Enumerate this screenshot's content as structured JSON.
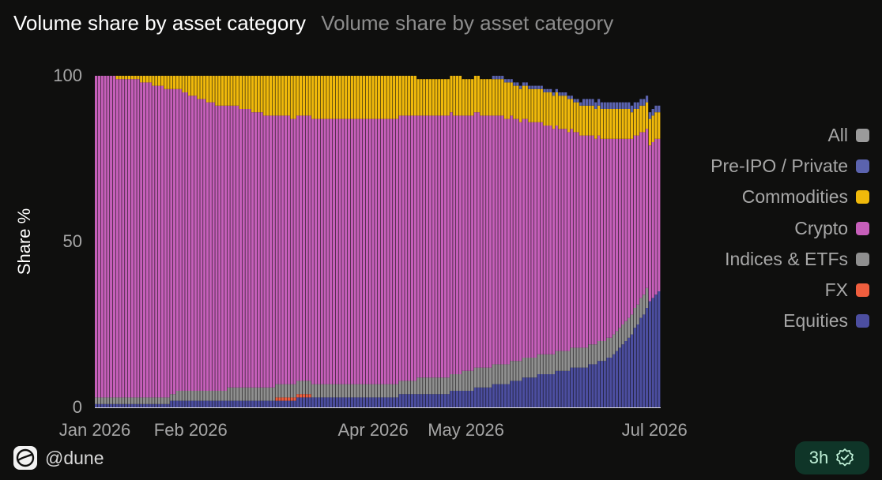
{
  "header": {
    "title": "Volume share by asset category",
    "subtitle": "Volume share by asset category"
  },
  "footer": {
    "handle": "@dune",
    "refresh": "3h"
  },
  "chart_data": {
    "type": "bar",
    "stacked": true,
    "percent_stacked": true,
    "xlabel": "",
    "ylabel": "Share %",
    "ylim": [
      0,
      100
    ],
    "y_ticks": [
      0,
      50,
      100
    ],
    "x_ticks": [
      "Jan 2026",
      "Feb 2026",
      "Apr 2026",
      "May 2026",
      "Jul 2026"
    ],
    "legend_position": "right",
    "legend": [
      {
        "name": "All",
        "color": "#9b9b9b"
      },
      {
        "name": "Pre-IPO / Private",
        "color": "#5b63ae"
      },
      {
        "name": "Commodities",
        "color": "#f0b90b"
      },
      {
        "name": "Crypto",
        "color": "#c65fba"
      },
      {
        "name": "Indices & ETFs",
        "color": "#8f8f8f"
      },
      {
        "name": "FX",
        "color": "#ef5e3e"
      },
      {
        "name": "Equities",
        "color": "#4c4ea0"
      }
    ],
    "grid": false,
    "x_start": "2026-01-01",
    "period_days": 183,
    "series_order": [
      "Equities",
      "FX",
      "Indices & ETFs",
      "Crypto",
      "Commodities",
      "Pre-IPO / Private"
    ],
    "series": [
      {
        "name": "Equities",
        "color": "#4c4ea0",
        "values": [
          1,
          1,
          1,
          1,
          1,
          1,
          1,
          1,
          1,
          1,
          1,
          1,
          1,
          1,
          1,
          1,
          1,
          1,
          1,
          1,
          1,
          1,
          1,
          1,
          1,
          2,
          2,
          2,
          2,
          2,
          2,
          2,
          2,
          2,
          2,
          2,
          2,
          2,
          2,
          2,
          2,
          2,
          2,
          2,
          2,
          2,
          2,
          2,
          2,
          2,
          2,
          2,
          2,
          2,
          2,
          2,
          2,
          2,
          2,
          2,
          2,
          2,
          2,
          2,
          2,
          2,
          2,
          3,
          3,
          3,
          3,
          3,
          3,
          3,
          3,
          3,
          3,
          3,
          3,
          3,
          3,
          3,
          3,
          3,
          3,
          3,
          3,
          3,
          3,
          3,
          3,
          3,
          3,
          3,
          3,
          3,
          3,
          3,
          3,
          3,
          3,
          4,
          4,
          4,
          4,
          4,
          4,
          4,
          4,
          4,
          4,
          4,
          4,
          4,
          4,
          4,
          4,
          4,
          5,
          5,
          5,
          5,
          5,
          5,
          5,
          5,
          6,
          6,
          6,
          6,
          6,
          6,
          7,
          7,
          7,
          7,
          7,
          7,
          8,
          8,
          8,
          8,
          9,
          9,
          9,
          9,
          9,
          10,
          10,
          10,
          10,
          10,
          10,
          11,
          11,
          11,
          11,
          11,
          12,
          12,
          12,
          12,
          12,
          12,
          13,
          13,
          13,
          14,
          14,
          14,
          15,
          15,
          16,
          17,
          18,
          19,
          20,
          21,
          22,
          24,
          25,
          27,
          28,
          30,
          32,
          33,
          34,
          35
        ]
      },
      {
        "name": "FX",
        "color": "#ef5e3e",
        "values": [
          0,
          0,
          0,
          0,
          0,
          0,
          0,
          0,
          0,
          0,
          0,
          0,
          0,
          0,
          0,
          0,
          0,
          0,
          0,
          0,
          0,
          0,
          0,
          0,
          0,
          0,
          0,
          0,
          0,
          0,
          0,
          0,
          0,
          0,
          0,
          0,
          0,
          0,
          0,
          0,
          0,
          0,
          0,
          0,
          0,
          0,
          0,
          0,
          0,
          0,
          0,
          0,
          0,
          0,
          0,
          0,
          0,
          0,
          0,
          0,
          1,
          1,
          1,
          1,
          1,
          1,
          1,
          1,
          1,
          1,
          1,
          1,
          0,
          0,
          0,
          0,
          0,
          0,
          0,
          0,
          0,
          0,
          0,
          0,
          0,
          0,
          0,
          0,
          0,
          0,
          0,
          0,
          0,
          0,
          0,
          0,
          0,
          0,
          0,
          0,
          0,
          0,
          0,
          0,
          0,
          0,
          0,
          0,
          0,
          0,
          0,
          0,
          0,
          0,
          0,
          0,
          0,
          0,
          0,
          0,
          0,
          0,
          0,
          0,
          0,
          0,
          0,
          0,
          0,
          0,
          0,
          0,
          0,
          0,
          0,
          0,
          0,
          0,
          0,
          0,
          0,
          0,
          0,
          0,
          0,
          0,
          0,
          0,
          0,
          0,
          0,
          0,
          0,
          0,
          0,
          0,
          0,
          0,
          0,
          0,
          0,
          0,
          0,
          0,
          0,
          0,
          0,
          0,
          0,
          0,
          0,
          0,
          0,
          0,
          0,
          0,
          0,
          0,
          0,
          0,
          0,
          0,
          0,
          0
        ]
      },
      {
        "name": "Indices & ETFs",
        "color": "#8f8f8f",
        "values": [
          2,
          2,
          2,
          2,
          2,
          2,
          2,
          2,
          2,
          2,
          2,
          2,
          2,
          2,
          2,
          2,
          2,
          2,
          2,
          2,
          2,
          2,
          2,
          2,
          2,
          2,
          2,
          3,
          3,
          3,
          3,
          3,
          3,
          3,
          3,
          3,
          3,
          3,
          3,
          3,
          3,
          3,
          3,
          3,
          4,
          4,
          4,
          4,
          4,
          4,
          4,
          4,
          4,
          4,
          4,
          4,
          4,
          4,
          4,
          4,
          4,
          4,
          4,
          4,
          4,
          4,
          4,
          4,
          4,
          4,
          4,
          4,
          4,
          4,
          4,
          4,
          4,
          4,
          4,
          4,
          4,
          4,
          4,
          4,
          4,
          4,
          4,
          4,
          4,
          4,
          4,
          4,
          4,
          4,
          4,
          4,
          4,
          4,
          4,
          4,
          4,
          4,
          4,
          4,
          4,
          4,
          4,
          5,
          5,
          5,
          5,
          5,
          5,
          5,
          5,
          5,
          5,
          5,
          5,
          5,
          5,
          5,
          6,
          6,
          6,
          6,
          6,
          6,
          6,
          6,
          6,
          6,
          6,
          6,
          6,
          6,
          6,
          6,
          6,
          6,
          6,
          6,
          6,
          6,
          6,
          6,
          6,
          6,
          6,
          6,
          6,
          6,
          6,
          6,
          6,
          6,
          6,
          6,
          6,
          6,
          6,
          6,
          6,
          6,
          6,
          6,
          6,
          6,
          6,
          6,
          6,
          6,
          6,
          6,
          6,
          6,
          6,
          6,
          6,
          6,
          6,
          6,
          6,
          6
        ]
      },
      {
        "name": "Crypto",
        "color": "#c65fba",
        "values": [
          97,
          97,
          97,
          97,
          97,
          97,
          97,
          96,
          96,
          96,
          96,
          96,
          96,
          96,
          96,
          95,
          95,
          95,
          95,
          94,
          94,
          94,
          94,
          93,
          93,
          92,
          92,
          91,
          91,
          90,
          90,
          89,
          89,
          89,
          88,
          88,
          88,
          87,
          87,
          87,
          86,
          86,
          86,
          86,
          85,
          85,
          85,
          85,
          84,
          84,
          84,
          84,
          83,
          83,
          83,
          83,
          82,
          82,
          82,
          82,
          81,
          81,
          81,
          81,
          81,
          80,
          80,
          80,
          80,
          80,
          80,
          80,
          80,
          80,
          80,
          80,
          80,
          80,
          80,
          80,
          80,
          80,
          80,
          80,
          80,
          80,
          80,
          80,
          80,
          80,
          80,
          80,
          80,
          80,
          80,
          80,
          80,
          80,
          80,
          80,
          80,
          80,
          80,
          80,
          80,
          80,
          80,
          79,
          79,
          79,
          79,
          79,
          79,
          79,
          79,
          79,
          79,
          79,
          79,
          78,
          78,
          78,
          77,
          77,
          77,
          77,
          77,
          77,
          76,
          76,
          76,
          76,
          75,
          75,
          75,
          75,
          74,
          74,
          74,
          73,
          73,
          72,
          72,
          72,
          71,
          71,
          71,
          70,
          70,
          69,
          69,
          69,
          68,
          68,
          67,
          67,
          67,
          66,
          66,
          65,
          65,
          64,
          64,
          64,
          63,
          63,
          62,
          62,
          61,
          61,
          60,
          60,
          59,
          58,
          57,
          56,
          55,
          54,
          53,
          52,
          51,
          50,
          49,
          48,
          47,
          47,
          47,
          46
        ]
      },
      {
        "name": "Commodities",
        "color": "#f0b90b",
        "values": [
          0,
          0,
          0,
          0,
          0,
          0,
          0,
          1,
          1,
          1,
          1,
          1,
          1,
          1,
          1,
          2,
          2,
          2,
          2,
          3,
          3,
          3,
          3,
          4,
          4,
          4,
          4,
          4,
          4,
          5,
          5,
          6,
          6,
          6,
          7,
          7,
          7,
          8,
          8,
          8,
          9,
          9,
          9,
          9,
          9,
          9,
          9,
          9,
          10,
          10,
          10,
          10,
          11,
          11,
          11,
          11,
          12,
          12,
          12,
          12,
          12,
          12,
          12,
          12,
          12,
          13,
          13,
          12,
          12,
          12,
          12,
          12,
          13,
          13,
          13,
          13,
          13,
          13,
          13,
          13,
          13,
          13,
          13,
          13,
          13,
          13,
          13,
          13,
          13,
          13,
          13,
          13,
          13,
          13,
          13,
          13,
          13,
          13,
          13,
          13,
          13,
          12,
          12,
          12,
          12,
          12,
          12,
          11,
          11,
          11,
          11,
          11,
          11,
          11,
          11,
          11,
          11,
          11,
          11,
          12,
          12,
          12,
          11,
          11,
          11,
          11,
          11,
          11,
          11,
          11,
          11,
          11,
          11,
          11,
          11,
          11,
          11,
          11,
          10,
          10,
          10,
          10,
          10,
          10,
          10,
          10,
          10,
          10,
          10,
          10,
          10,
          10,
          10,
          10,
          10,
          10,
          10,
          10,
          9,
          9,
          9,
          9,
          9,
          9,
          9,
          9,
          9,
          9,
          9,
          9,
          9,
          9,
          9,
          9,
          9,
          9,
          9,
          9,
          8,
          8,
          8,
          8,
          8,
          8,
          8,
          8,
          8,
          8
        ]
      },
      {
        "name": "Pre-IPO / Private",
        "color": "#5b63ae",
        "values": [
          0,
          0,
          0,
          0,
          0,
          0,
          0,
          0,
          0,
          0,
          0,
          0,
          0,
          0,
          0,
          0,
          0,
          0,
          0,
          0,
          0,
          0,
          0,
          0,
          0,
          0,
          0,
          0,
          0,
          0,
          0,
          0,
          0,
          0,
          0,
          0,
          0,
          0,
          0,
          0,
          0,
          0,
          0,
          0,
          0,
          0,
          0,
          0,
          0,
          0,
          0,
          0,
          0,
          0,
          0,
          0,
          0,
          0,
          0,
          0,
          0,
          0,
          0,
          0,
          0,
          0,
          0,
          0,
          0,
          0,
          0,
          0,
          0,
          0,
          0,
          0,
          0,
          0,
          0,
          0,
          0,
          0,
          0,
          0,
          0,
          0,
          0,
          0,
          0,
          0,
          0,
          0,
          0,
          0,
          0,
          0,
          0,
          0,
          0,
          0,
          0,
          0,
          0,
          0,
          0,
          0,
          0,
          0,
          0,
          0,
          0,
          0,
          0,
          0,
          0,
          0,
          0,
          0,
          0,
          0,
          0,
          0,
          0,
          0,
          0,
          0,
          0,
          0,
          0,
          0,
          0,
          0,
          1,
          1,
          1,
          1,
          1,
          1,
          1,
          1,
          1,
          1,
          1,
          1,
          1,
          1,
          1,
          1,
          1,
          1,
          1,
          1,
          1,
          1,
          1,
          1,
          1,
          1,
          1,
          1,
          1,
          1,
          2,
          2,
          2,
          2,
          2,
          2,
          2,
          2,
          2,
          2,
          2,
          2,
          2,
          2,
          2,
          2,
          2,
          2,
          2,
          2,
          2,
          2,
          2,
          2,
          2,
          2,
          2,
          2
        ]
      }
    ]
  }
}
